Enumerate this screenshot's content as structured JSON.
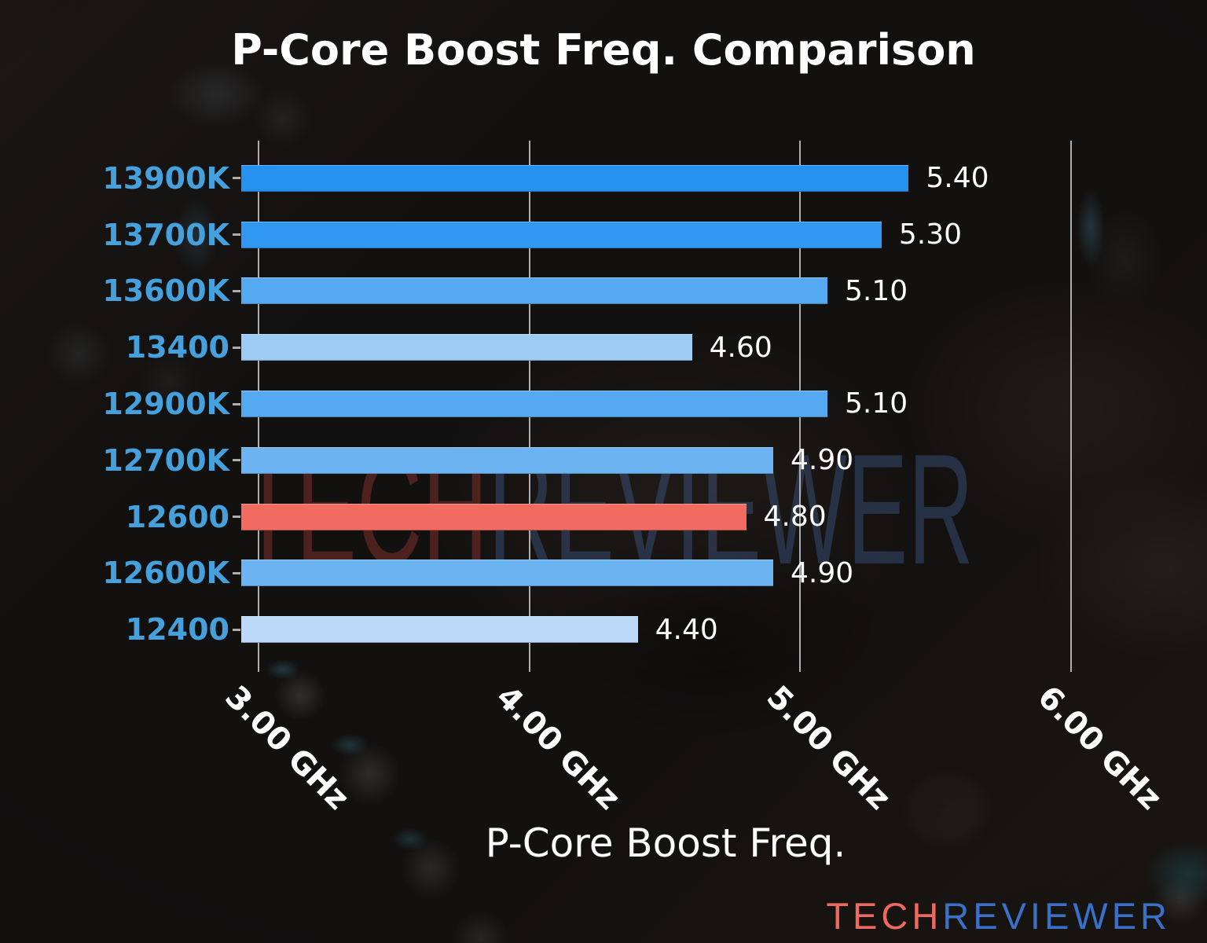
{
  "title": "P-Core Boost Freq. Comparison",
  "watermark": {
    "part1": "TECH",
    "part2": "REVIEWER"
  },
  "logo": {
    "part1": "TECH",
    "part2": "REVIEWER"
  },
  "colors": {
    "title_text": "#ffffff",
    "category_label_blue": "#46a0dc",
    "gridline_gray": "#adadad",
    "highlight_red": "#f16b61",
    "logo_red": "#ee6a60",
    "logo_blue": "#3a70c8"
  },
  "chart_data": {
    "type": "bar",
    "orientation": "horizontal",
    "title": "P-Core Boost Freq. Comparison",
    "xlabel": "P-Core Boost Freq.",
    "ylabel": "",
    "categories": [
      "13900K",
      "13700K",
      "13600K",
      "13400",
      "12900K",
      "12700K",
      "12600",
      "12600K",
      "12400"
    ],
    "values": [
      5.4,
      5.3,
      5.1,
      4.6,
      5.1,
      4.9,
      4.8,
      4.9,
      4.4
    ],
    "value_labels": [
      "5.40",
      "5.30",
      "5.10",
      "4.60",
      "5.10",
      "4.90",
      "4.80",
      "4.90",
      "4.40"
    ],
    "bar_colors": [
      "#2492ee",
      "#3098f0",
      "#55a9f1",
      "#9ccbf4",
      "#55a9f1",
      "#6cb3f2",
      "#f16b61",
      "#6cb3f2",
      "#bcdaf7"
    ],
    "highlight_index": 6,
    "unit": "GHz",
    "xlim": [
      2.936,
      6.069
    ],
    "gridlines": [
      3.0,
      4.0,
      5.0,
      6.0
    ],
    "tick_labels": [
      "3.00 GHz",
      "4.00 GHz",
      "5.00 GHz",
      "6.00 GHz"
    ],
    "grid": true,
    "legend": false
  }
}
